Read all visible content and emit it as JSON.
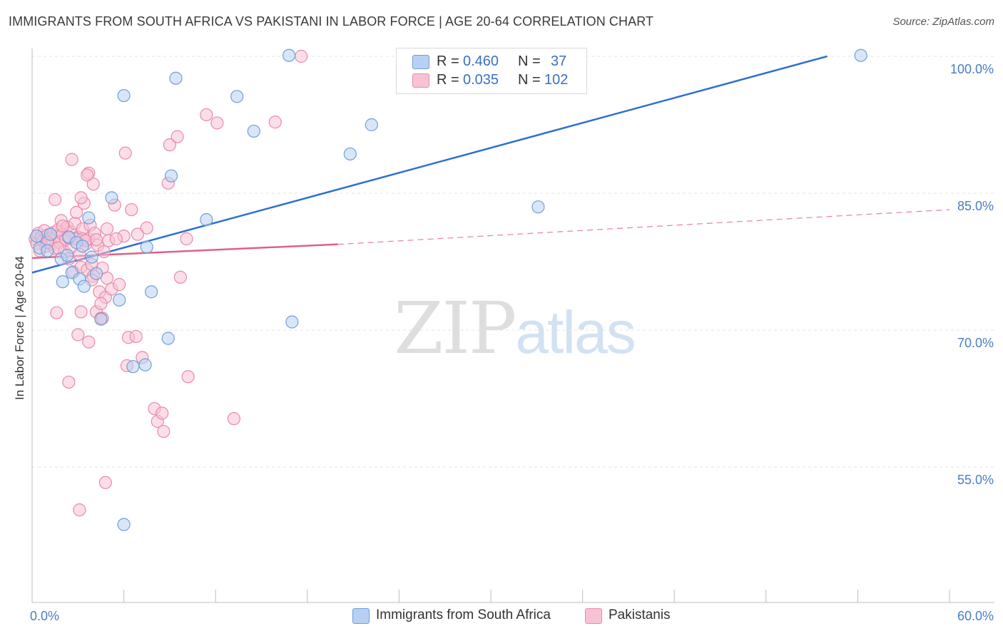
{
  "title": "IMMIGRANTS FROM SOUTH AFRICA VS PAKISTANI IN LABOR FORCE | AGE 20-64 CORRELATION CHART",
  "source": "Source: ZipAtlas.com",
  "watermark": {
    "zip": "ZIP",
    "atlas": "atlas"
  },
  "legend_top": [
    {
      "r_label": "R =",
      "r_value": "0.460",
      "n_label": "N =",
      "n_value": "37"
    },
    {
      "r_label": "R =",
      "r_value": "0.035",
      "n_label": "N =",
      "n_value": "102"
    }
  ],
  "legend_bottom": [
    {
      "label": "Immigrants from South Africa"
    },
    {
      "label": "Pakistanis"
    }
  ],
  "colors": {
    "blue_fill": "#b8d1f2",
    "blue_stroke": "#6f9fdb",
    "blue_line": "#2f6fd0",
    "pink_fill": "#f7c3d4",
    "pink_stroke": "#e98aab",
    "pink_line": "#e0608a",
    "grid": "#e3e3e3",
    "tick_text": "#4a7cc9"
  },
  "chart_data": {
    "type": "scatter",
    "title": "IMMIGRANTS FROM SOUTH AFRICA VS PAKISTANI IN LABOR FORCE | AGE 20-64 CORRELATION CHART",
    "xlabel": "",
    "ylabel": "In Labor Force | Age 20-64",
    "xlim": [
      0,
      60
    ],
    "ylim": [
      40,
      102
    ],
    "x_tick_labels": [
      "0.0%",
      "60.0%"
    ],
    "y_ticks": [
      55,
      70,
      85,
      100
    ],
    "y_tick_labels": [
      "55.0%",
      "70.0%",
      "85.0%",
      "100.0%"
    ],
    "grid": true,
    "legend_position": "top-center",
    "series": [
      {
        "name": "Immigrants from South Africa",
        "color": "#6f9fdb",
        "points": [
          [
            0.3,
            80.3
          ],
          [
            0.5,
            79.0
          ],
          [
            1.2,
            80.5
          ],
          [
            1.9,
            77.8
          ],
          [
            2.0,
            75.3
          ],
          [
            2.3,
            78.2
          ],
          [
            2.4,
            80.2
          ],
          [
            2.6,
            76.3
          ],
          [
            2.9,
            79.6
          ],
          [
            3.1,
            75.6
          ],
          [
            3.4,
            74.8
          ],
          [
            3.7,
            82.3
          ],
          [
            3.9,
            78.0
          ],
          [
            4.2,
            76.2
          ],
          [
            4.5,
            71.2
          ],
          [
            5.2,
            84.5
          ],
          [
            5.7,
            73.3
          ],
          [
            6.0,
            95.7
          ],
          [
            6.0,
            48.7
          ],
          [
            6.6,
            66.0
          ],
          [
            7.4,
            66.2
          ],
          [
            7.5,
            79.1
          ],
          [
            7.8,
            74.2
          ],
          [
            8.9,
            69.1
          ],
          [
            9.1,
            86.9
          ],
          [
            9.4,
            97.6
          ],
          [
            11.4,
            82.1
          ],
          [
            13.4,
            95.6
          ],
          [
            14.5,
            91.8
          ],
          [
            16.8,
            100.1
          ],
          [
            17.0,
            70.9
          ],
          [
            20.8,
            89.3
          ],
          [
            22.2,
            92.5
          ],
          [
            33.1,
            83.5
          ],
          [
            54.2,
            100.1
          ],
          [
            3.3,
            79.2
          ],
          [
            1.0,
            78.7
          ]
        ],
        "trend": {
          "x": [
            0,
            52
          ],
          "y": [
            76.3,
            100.0
          ]
        }
      },
      {
        "name": "Pakistanis",
        "color": "#e98aab",
        "points": [
          [
            0.2,
            80.0
          ],
          [
            0.3,
            79.5
          ],
          [
            0.4,
            80.6
          ],
          [
            0.5,
            78.7
          ],
          [
            0.6,
            80.2
          ],
          [
            0.7,
            79.8
          ],
          [
            0.8,
            80.9
          ],
          [
            0.9,
            79.2
          ],
          [
            1.0,
            80.4
          ],
          [
            1.1,
            79.7
          ],
          [
            1.2,
            80.1
          ],
          [
            1.3,
            79.4
          ],
          [
            1.4,
            80.7
          ],
          [
            1.5,
            78.9
          ],
          [
            1.6,
            80.3
          ],
          [
            1.7,
            81.0
          ],
          [
            1.8,
            79.6
          ],
          [
            1.9,
            82.0
          ],
          [
            2.0,
            80.5
          ],
          [
            2.1,
            78.6
          ],
          [
            2.2,
            79.9
          ],
          [
            2.3,
            81.3
          ],
          [
            2.4,
            77.8
          ],
          [
            2.5,
            80.8
          ],
          [
            2.6,
            79.1
          ],
          [
            2.7,
            76.4
          ],
          [
            2.8,
            81.7
          ],
          [
            2.9,
            82.9
          ],
          [
            3.0,
            80.2
          ],
          [
            3.1,
            78.3
          ],
          [
            3.2,
            76.9
          ],
          [
            3.3,
            81.1
          ],
          [
            3.4,
            83.9
          ],
          [
            3.5,
            79.4
          ],
          [
            3.6,
            76.6
          ],
          [
            3.7,
            80.0
          ],
          [
            3.8,
            81.5
          ],
          [
            3.9,
            77.2
          ],
          [
            4.0,
            75.9
          ],
          [
            4.1,
            80.6
          ],
          [
            4.2,
            72.0
          ],
          [
            4.3,
            79.3
          ],
          [
            4.4,
            74.2
          ],
          [
            4.5,
            71.3
          ],
          [
            4.6,
            76.8
          ],
          [
            4.7,
            78.6
          ],
          [
            4.8,
            73.6
          ],
          [
            4.9,
            75.7
          ],
          [
            5.0,
            79.8
          ],
          [
            5.2,
            74.5
          ],
          [
            5.4,
            83.7
          ],
          [
            5.7,
            75.0
          ],
          [
            6.0,
            80.3
          ],
          [
            6.1,
            89.4
          ],
          [
            6.2,
            66.1
          ],
          [
            6.3,
            69.2
          ],
          [
            6.5,
            83.2
          ],
          [
            6.8,
            69.3
          ],
          [
            7.2,
            67.0
          ],
          [
            7.5,
            81.2
          ],
          [
            8.0,
            61.4
          ],
          [
            8.2,
            60.0
          ],
          [
            8.5,
            60.9
          ],
          [
            8.6,
            58.9
          ],
          [
            8.9,
            86.1
          ],
          [
            9.0,
            90.3
          ],
          [
            9.5,
            91.2
          ],
          [
            9.7,
            75.8
          ],
          [
            10.1,
            80.0
          ],
          [
            10.2,
            64.9
          ],
          [
            11.4,
            93.6
          ],
          [
            12.1,
            92.7
          ],
          [
            13.2,
            60.3
          ],
          [
            15.9,
            92.8
          ],
          [
            17.6,
            100.0
          ],
          [
            2.6,
            88.7
          ],
          [
            2.4,
            64.3
          ],
          [
            3.7,
            87.2
          ],
          [
            4.0,
            86.0
          ],
          [
            3.2,
            84.5
          ],
          [
            4.5,
            72.9
          ],
          [
            2.8,
            80.0
          ],
          [
            3.3,
            80.0
          ],
          [
            4.9,
            81.1
          ],
          [
            1.7,
            79.0
          ],
          [
            2.4,
            80.1
          ],
          [
            1.5,
            84.3
          ],
          [
            3.6,
            87.0
          ],
          [
            3.9,
            75.5
          ],
          [
            1.6,
            71.9
          ],
          [
            3.0,
            69.5
          ],
          [
            4.8,
            53.3
          ],
          [
            3.7,
            68.7
          ],
          [
            3.2,
            72.0
          ],
          [
            4.6,
            71.3
          ],
          [
            3.5,
            79.8
          ],
          [
            4.2,
            79.9
          ],
          [
            5.5,
            80.0
          ],
          [
            6.9,
            80.5
          ],
          [
            1.0,
            79.6
          ],
          [
            2.0,
            81.4
          ],
          [
            3.1,
            50.3
          ]
        ],
        "trend": {
          "x": [
            0,
            20
          ],
          "y": [
            77.9,
            79.4
          ]
        },
        "trend_extension": {
          "x": [
            20,
            60
          ],
          "y": [
            79.4,
            83.2
          ]
        }
      }
    ]
  }
}
